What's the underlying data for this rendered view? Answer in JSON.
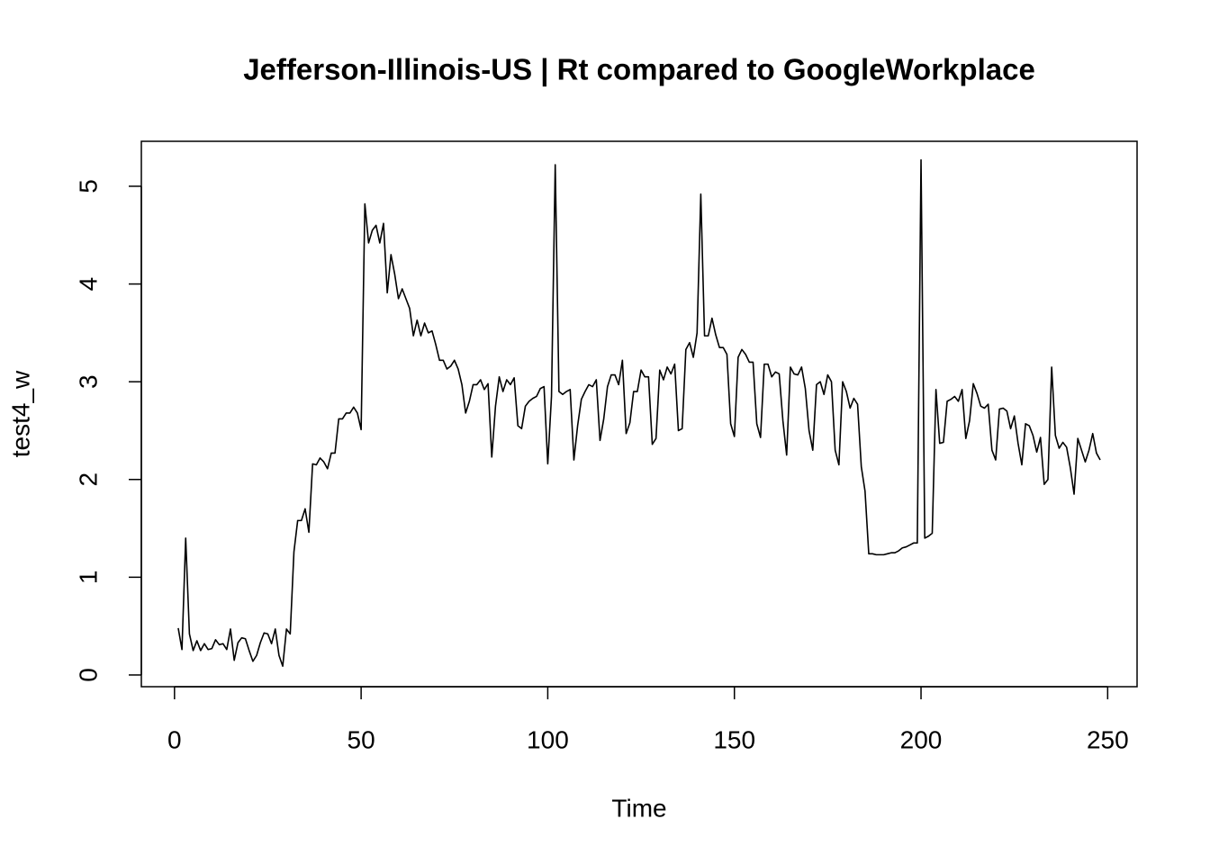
{
  "chart_data": {
    "type": "line",
    "title": "Jefferson-Illinois-US | Rt compared to GoogleWorkplace",
    "x_label": "Time",
    "y_label": "test4_w",
    "xlim": [
      -8.88,
      257.88
    ],
    "ylim": [
      -0.12,
      5.46
    ],
    "xticks": [
      0,
      50,
      100,
      150,
      200,
      250
    ],
    "yticks": [
      0,
      1,
      2,
      3,
      4,
      5
    ],
    "grid": false,
    "x": [
      1,
      2,
      3,
      4,
      5,
      6,
      7,
      8,
      9,
      10,
      11,
      12,
      13,
      14,
      15,
      16,
      17,
      18,
      19,
      20,
      21,
      22,
      23,
      24,
      25,
      26,
      27,
      28,
      29,
      30,
      31,
      32,
      33,
      34,
      35,
      36,
      37,
      38,
      39,
      40,
      41,
      42,
      43,
      44,
      45,
      46,
      47,
      48,
      49,
      50,
      51,
      52,
      53,
      54,
      55,
      56,
      57,
      58,
      59,
      60,
      61,
      62,
      63,
      64,
      65,
      66,
      67,
      68,
      69,
      70,
      71,
      72,
      73,
      74,
      75,
      76,
      77,
      78,
      79,
      80,
      81,
      82,
      83,
      84,
      85,
      86,
      87,
      88,
      89,
      90,
      91,
      92,
      93,
      94,
      95,
      96,
      97,
      98,
      99,
      100,
      101,
      102,
      103,
      104,
      105,
      106,
      107,
      108,
      109,
      110,
      111,
      112,
      113,
      114,
      115,
      116,
      117,
      118,
      119,
      120,
      121,
      122,
      123,
      124,
      125,
      126,
      127,
      128,
      129,
      130,
      131,
      132,
      133,
      134,
      135,
      136,
      137,
      138,
      139,
      140,
      141,
      142,
      143,
      144,
      145,
      146,
      147,
      148,
      149,
      150,
      151,
      152,
      153,
      154,
      155,
      156,
      157,
      158,
      159,
      160,
      161,
      162,
      163,
      164,
      165,
      166,
      167,
      168,
      169,
      170,
      171,
      172,
      173,
      174,
      175,
      176,
      177,
      178,
      179,
      180,
      181,
      182,
      183,
      184,
      185,
      186,
      187,
      188,
      189,
      190,
      191,
      192,
      193,
      194,
      195,
      196,
      197,
      198,
      199,
      200,
      201,
      202,
      203,
      204,
      205,
      206,
      207,
      208,
      209,
      210,
      211,
      212,
      213,
      214,
      215,
      216,
      217,
      218,
      219,
      220,
      221,
      222,
      223,
      224,
      225,
      226,
      227,
      228,
      229,
      230,
      231,
      232,
      233,
      234,
      235,
      236,
      237,
      238,
      239,
      240,
      241,
      242,
      243,
      244,
      245,
      246,
      247,
      248
    ],
    "series": [
      {
        "name": "test4_w",
        "color": "#000000",
        "values": [
          0.48,
          0.26,
          1.4,
          0.42,
          0.25,
          0.35,
          0.25,
          0.32,
          0.26,
          0.27,
          0.36,
          0.31,
          0.32,
          0.26,
          0.47,
          0.15,
          0.33,
          0.38,
          0.37,
          0.25,
          0.14,
          0.2,
          0.33,
          0.43,
          0.42,
          0.32,
          0.47,
          0.2,
          0.09,
          0.47,
          0.42,
          1.26,
          1.58,
          1.58,
          1.7,
          1.46,
          2.16,
          2.15,
          2.22,
          2.18,
          2.11,
          2.27,
          2.27,
          2.62,
          2.62,
          2.68,
          2.68,
          2.74,
          2.68,
          2.51,
          4.82,
          4.42,
          4.55,
          4.6,
          4.42,
          4.62,
          3.91,
          4.3,
          4.1,
          3.85,
          3.95,
          3.85,
          3.75,
          3.47,
          3.63,
          3.47,
          3.6,
          3.5,
          3.52,
          3.38,
          3.22,
          3.22,
          3.13,
          3.16,
          3.22,
          3.13,
          2.97,
          2.68,
          2.8,
          2.97,
          2.97,
          3.02,
          2.92,
          2.98,
          2.23,
          2.75,
          3.05,
          2.9,
          3.02,
          2.97,
          3.04,
          2.55,
          2.52,
          2.75,
          2.8,
          2.83,
          2.85,
          2.93,
          2.95,
          2.16,
          2.85,
          5.22,
          2.9,
          2.87,
          2.9,
          2.92,
          2.2,
          2.55,
          2.82,
          2.9,
          2.97,
          2.95,
          3.02,
          2.4,
          2.62,
          2.95,
          3.07,
          3.07,
          2.97,
          3.22,
          2.47,
          2.58,
          2.9,
          2.9,
          3.12,
          3.05,
          3.05,
          2.36,
          2.42,
          3.12,
          3.02,
          3.15,
          3.08,
          3.18,
          2.5,
          2.52,
          3.33,
          3.4,
          3.25,
          3.5,
          4.92,
          3.47,
          3.47,
          3.65,
          3.48,
          3.35,
          3.35,
          3.28,
          2.57,
          2.44,
          3.25,
          3.33,
          3.28,
          3.2,
          3.2,
          2.57,
          2.43,
          3.18,
          3.18,
          3.05,
          3.1,
          3.08,
          2.6,
          2.25,
          3.15,
          3.08,
          3.07,
          3.15,
          2.93,
          2.5,
          2.3,
          2.97,
          3.0,
          2.87,
          3.07,
          3.0,
          2.3,
          2.15,
          3.0,
          2.9,
          2.73,
          2.83,
          2.77,
          2.13,
          1.88,
          1.24,
          1.24,
          1.23,
          1.23,
          1.23,
          1.24,
          1.25,
          1.25,
          1.27,
          1.3,
          1.31,
          1.33,
          1.35,
          1.35,
          5.27,
          1.4,
          1.42,
          1.45,
          2.92,
          2.37,
          2.38,
          2.8,
          2.82,
          2.85,
          2.8,
          2.92,
          2.42,
          2.6,
          2.98,
          2.88,
          2.75,
          2.73,
          2.77,
          2.3,
          2.2,
          2.72,
          2.73,
          2.7,
          2.52,
          2.65,
          2.37,
          2.15,
          2.57,
          2.55,
          2.45,
          2.28,
          2.43,
          1.95,
          2.0,
          3.15,
          2.45,
          2.32,
          2.38,
          2.33,
          2.12,
          1.85,
          2.42,
          2.3,
          2.18,
          2.3,
          2.47,
          2.27,
          2.2
        ]
      }
    ]
  }
}
